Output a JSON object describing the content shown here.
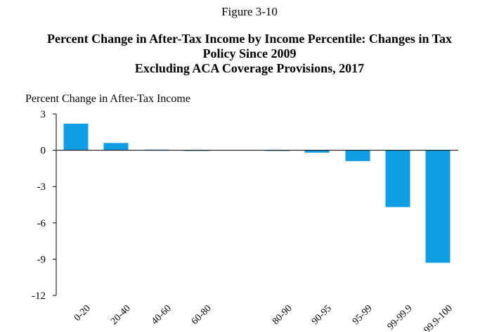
{
  "figure_label": "Figure 3-10",
  "title_lines": [
    "Percent Change in After-Tax Income by Income Percentile: Changes in Tax",
    "Policy Since 2009",
    "Excluding ACA Coverage Provisions, 2017"
  ],
  "chart_data": {
    "type": "bar",
    "title": "Percent Change in After-Tax Income by Income Percentile: Changes in Tax Policy Since 2009 Excluding ACA Coverage Provisions, 2017",
    "ylabel": "Percent Change in After-Tax Income",
    "xlabel": "",
    "ylim": [
      -12,
      3
    ],
    "yticks": [
      3,
      0,
      -3,
      -6,
      -9,
      -12
    ],
    "categories": [
      "0-20",
      "20-40",
      "40-60",
      "60-80",
      "80-90",
      "90-95",
      "95-99",
      "99-99.9",
      "99.9-100"
    ],
    "values": [
      2.2,
      0.6,
      0.05,
      0.0,
      0.0,
      -0.2,
      -0.9,
      -4.7,
      -9.3
    ],
    "bar_color": "#0F9DE3",
    "grid": false,
    "legend": "none"
  }
}
